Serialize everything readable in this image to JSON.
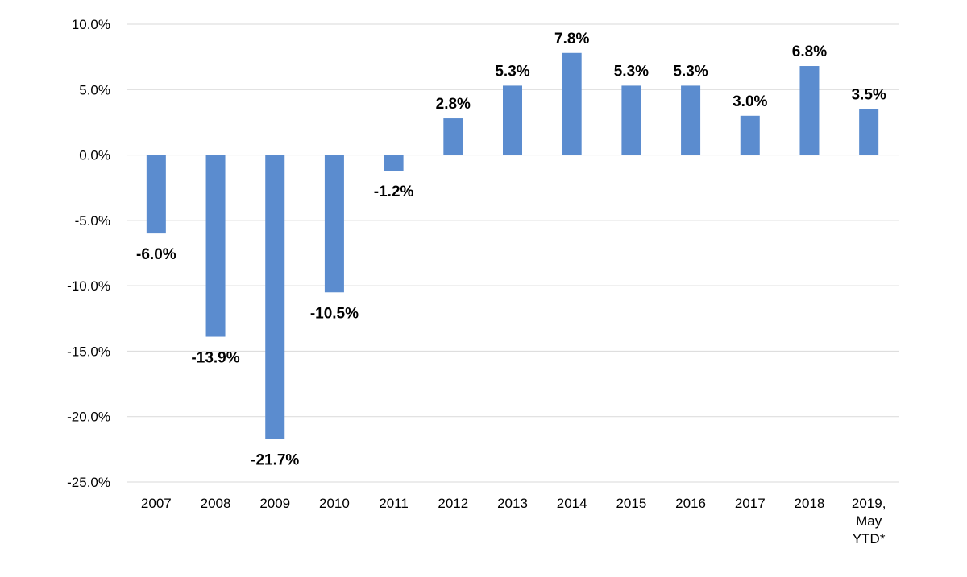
{
  "chart_data": {
    "type": "bar",
    "categories": [
      "2007",
      "2008",
      "2009",
      "2010",
      "2011",
      "2012",
      "2013",
      "2014",
      "2015",
      "2016",
      "2017",
      "2018",
      "2019, May YTD*"
    ],
    "values": [
      -6.0,
      -13.9,
      -21.7,
      -10.5,
      -1.2,
      2.8,
      5.3,
      7.8,
      5.3,
      5.3,
      3.0,
      6.8,
      3.5
    ],
    "data_labels": [
      "-6.0%",
      "-13.9%",
      "-21.7%",
      "-10.5%",
      "-1.2%",
      "2.8%",
      "5.3%",
      "7.8%",
      "5.3%",
      "5.3%",
      "3.0%",
      "6.8%",
      "3.5%"
    ],
    "y_ticks": [
      10,
      5,
      0,
      -5,
      -10,
      -15,
      -20,
      -25
    ],
    "y_tick_labels": [
      "10.0%",
      "5.0%",
      "0.0%",
      "-5.0%",
      "-10.0%",
      "-15.0%",
      "-20.0%",
      "-25.0%"
    ],
    "ylim": [
      -25,
      10
    ],
    "grid": true,
    "legend": "none",
    "bar_color": "#5b8ccf"
  }
}
